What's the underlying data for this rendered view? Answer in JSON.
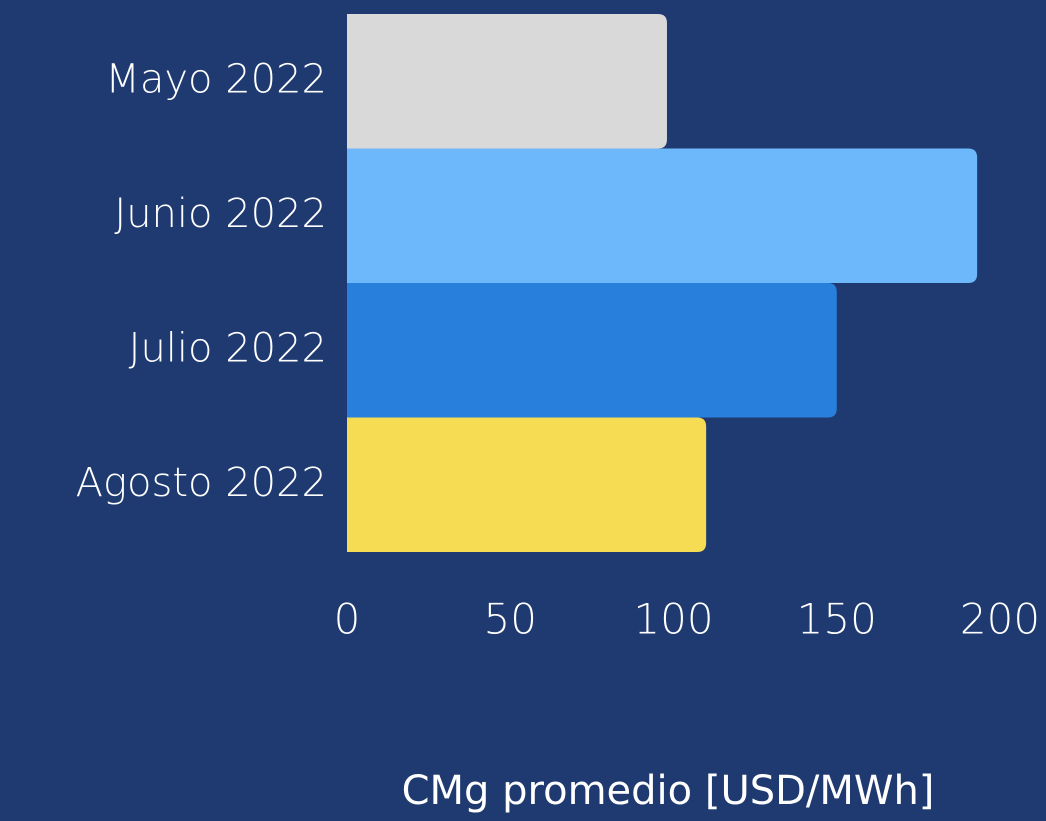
{
  "chart_data": {
    "type": "bar",
    "orientation": "horizontal",
    "categories": [
      "Mayo 2022",
      "Junio 2022",
      "Julio 2022",
      "Agosto 2022"
    ],
    "values": [
      98,
      193,
      150,
      110
    ],
    "colors": [
      "#d9d9d9",
      "#6db8fb",
      "#2880dc",
      "#f5dc52"
    ],
    "xlabel": "CMg promedio [USD/MWh]",
    "xlim": [
      0,
      200
    ],
    "xticks": [
      0,
      50,
      100,
      150,
      200
    ],
    "grid": false
  }
}
